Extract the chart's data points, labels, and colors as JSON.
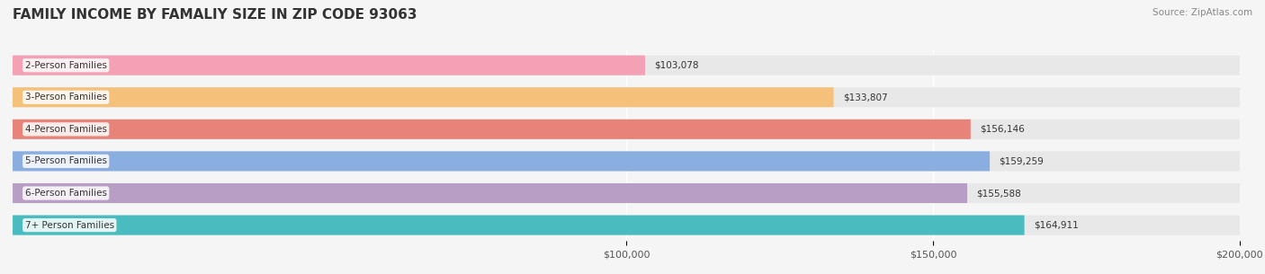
{
  "title": "FAMILY INCOME BY FAMALIY SIZE IN ZIP CODE 93063",
  "source": "Source: ZipAtlas.com",
  "categories": [
    "2-Person Families",
    "3-Person Families",
    "4-Person Families",
    "5-Person Families",
    "6-Person Families",
    "7+ Person Families"
  ],
  "values": [
    103078,
    133807,
    156146,
    159259,
    155588,
    164911
  ],
  "bar_colors": [
    "#f4a0b5",
    "#f5c07a",
    "#e8837a",
    "#8aaee0",
    "#b89ec4",
    "#4abcbf"
  ],
  "label_bg_colors": [
    "#f4a0b5",
    "#f5c07a",
    "#e8837a",
    "#8aaee0",
    "#b89ec4",
    "#4abcbf"
  ],
  "value_labels": [
    "$103,078",
    "$133,807",
    "$156,146",
    "$159,259",
    "$155,588",
    "$164,911"
  ],
  "xlim": [
    0,
    200000
  ],
  "xticks": [
    100000,
    150000,
    200000
  ],
  "xtick_labels": [
    "$100,000",
    "$150,000",
    "$200,000"
  ],
  "bar_height": 0.62,
  "background_color": "#f5f5f5",
  "bar_bg_color": "#e8e8e8",
  "title_fontsize": 11,
  "label_fontsize": 7.5,
  "value_fontsize": 7.5,
  "tick_fontsize": 8
}
